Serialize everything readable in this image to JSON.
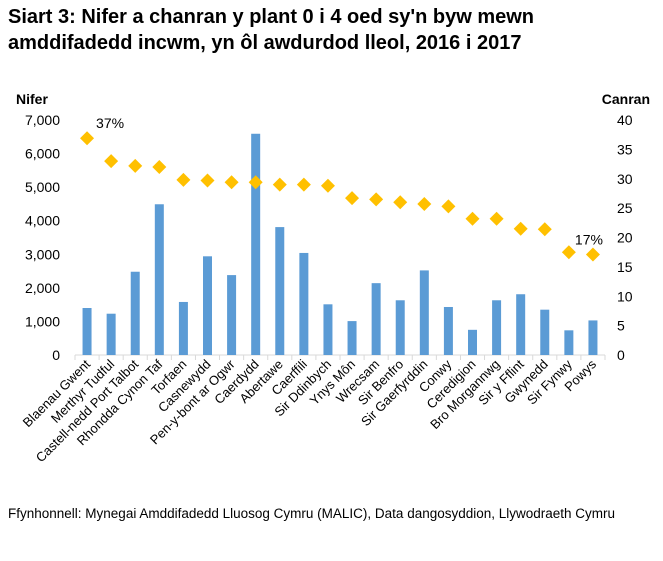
{
  "chart_data": {
    "type": "bar+scatter",
    "title": "Siart 3: Nifer a chanran y plant 0 i 4 oed sy'n byw mewn amddifadedd incwm, yn ôl awdurdod lleol, 2016 i 2017",
    "ylabel_left": "Nifer",
    "ylabel_right": "Canran",
    "ylim_left": [
      0,
      7000
    ],
    "ylim_right": [
      0,
      40
    ],
    "yticks_left": [
      "0",
      "1,000",
      "2,000",
      "3,000",
      "4,000",
      "5,000",
      "6,000",
      "7,000"
    ],
    "yticks_right": [
      "0",
      "5",
      "10",
      "15",
      "20",
      "25",
      "30",
      "35",
      "40"
    ],
    "grid": false,
    "categories": [
      "Blaenau Gwent",
      "Merthyr Tudful",
      "Castell-nedd Port Talbot",
      "Rhondda Cynon Taf",
      "Torfaen",
      "Casnewydd",
      "Pen-y-bont ar Ogwr",
      "Caerdydd",
      "Abertawe",
      "Caerffili",
      "Sir Ddinbych",
      "Ynys Môn",
      "Wrecsam",
      "Sir Benfro",
      "Sir Gaerfyrddin",
      "Conwy",
      "Ceredigion",
      "Bro Morgannwg",
      "Sir y Fflint",
      "Gwynedd",
      "Sir Fynwy",
      "Powys"
    ],
    "series": [
      {
        "axis": "left",
        "type": "bar",
        "color": "#5b9bd5",
        "values": [
          1400,
          1230,
          2480,
          4490,
          1580,
          2940,
          2380,
          6590,
          3810,
          3040,
          1510,
          1010,
          2140,
          1630,
          2520,
          1430,
          750,
          1630,
          1810,
          1350,
          735,
          1030
        ]
      },
      {
        "axis": "right",
        "type": "scatter",
        "marker": "diamond",
        "color": "#ffc000",
        "values": [
          36.9,
          33.0,
          32.2,
          32.0,
          29.8,
          29.7,
          29.4,
          29.4,
          29.0,
          29.0,
          28.8,
          26.7,
          26.5,
          26.0,
          25.7,
          25.3,
          23.2,
          23.2,
          21.5,
          21.4,
          17.5,
          17.1
        ]
      }
    ],
    "annotations": [
      {
        "text": "37%",
        "category_index": 0
      },
      {
        "text": "17%",
        "category_index": 21
      }
    ]
  },
  "source": "Ffynhonnell: Mynegai Amddifadedd Lluosog Cymru (MALIC), Data dangosyddion, Llywodraeth Cymru"
}
